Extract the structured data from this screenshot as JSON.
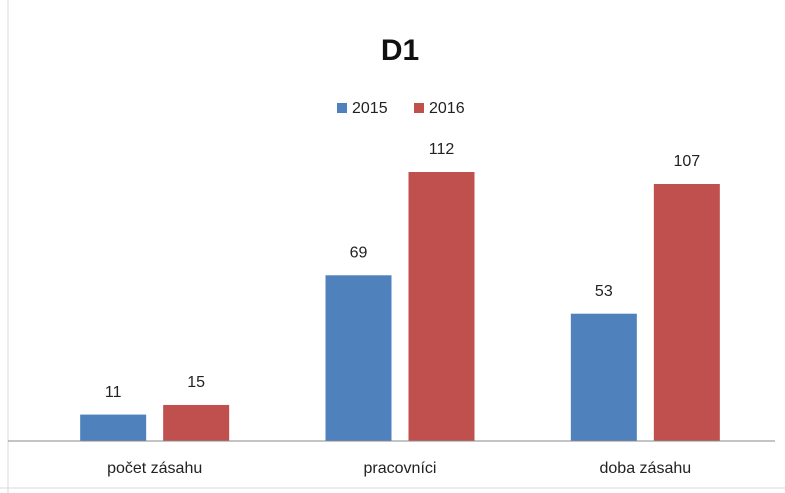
{
  "chart_data": {
    "type": "bar",
    "title": "D1",
    "categories": [
      "počet zásahu",
      "pracovníci",
      "doba zásahu"
    ],
    "series": [
      {
        "name": "2015",
        "color": "#4f81bd",
        "values": [
          11,
          69,
          53
        ]
      },
      {
        "name": "2016",
        "color": "#c0504d",
        "values": [
          15,
          112,
          107
        ]
      }
    ],
    "legend": "top"
  }
}
